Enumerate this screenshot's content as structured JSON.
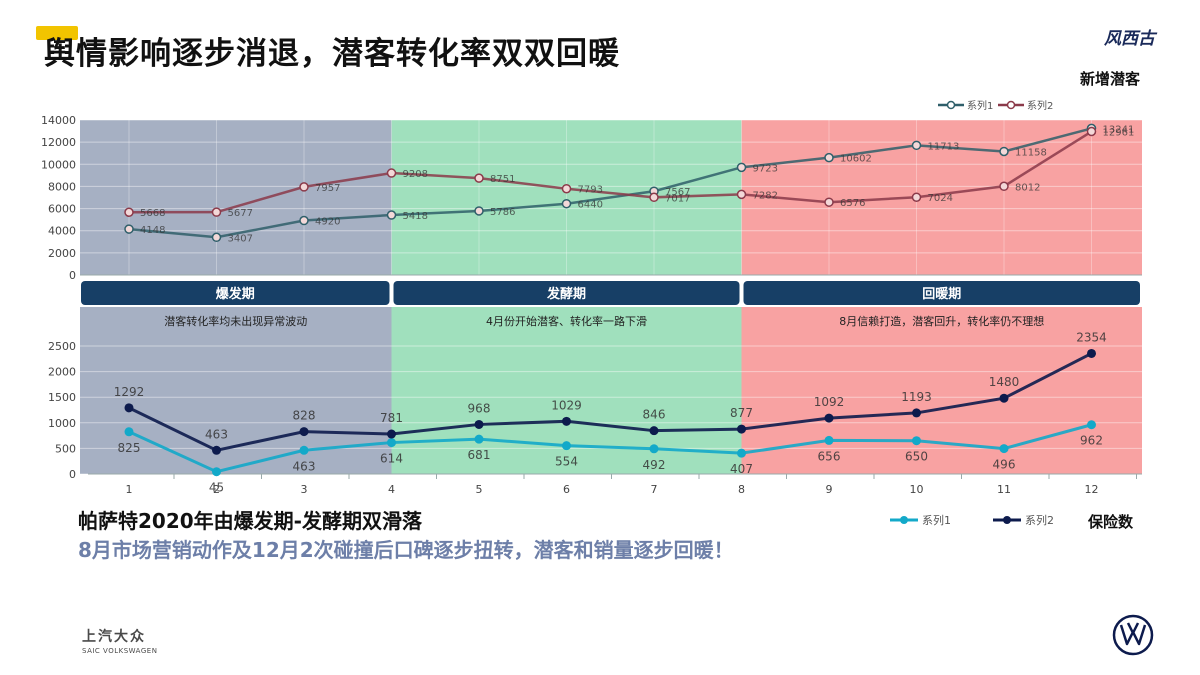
{
  "header": {
    "title": "舆情影响逐步消退，潜客转化率双双回暖",
    "brand_logo": "风西古"
  },
  "footer": {
    "summary_line1": "帕萨特2020年由爆发期-发酵期双滑落",
    "summary_line2": "8月市场营销动作及12月2次碰撞后口碑逐步扭转，潜客和销量逐步回暖！",
    "company_cn": "上汽大众",
    "company_en": "SAIC VOLKSWAGEN",
    "vw_logo": "vw-logo-icon"
  },
  "phases": [
    {
      "name": "爆发期",
      "note": "潜客转化率均未出现异常波动",
      "from": 1,
      "to": 4,
      "color": "#a6b0c3"
    },
    {
      "name": "发酵期",
      "note": "4月份开始潜客、转化率一路下滑",
      "from": 4,
      "to": 8,
      "color": "#a0e0bd"
    },
    {
      "name": "回暖期",
      "note": "8月信赖打造，潜客回升，转化率仍不理想",
      "from": 8,
      "to": 12,
      "color": "#f8a2a2"
    }
  ],
  "chart_data": [
    {
      "type": "line",
      "title": "新增潜客",
      "categories": [
        1,
        2,
        3,
        4,
        5,
        6,
        7,
        8,
        9,
        10,
        11,
        12
      ],
      "ylim": [
        0,
        14000
      ],
      "yticks": [
        0,
        2000,
        4000,
        6000,
        8000,
        10000,
        12000,
        14000
      ],
      "legend": "top-right",
      "grid": true,
      "series": [
        {
          "name": "系列1",
          "values": [
            4148,
            3407,
            4920,
            5418,
            5786,
            6440,
            7567,
            9723,
            10602,
            11713,
            11158,
            13241
          ],
          "color": "#2f5f6a"
        },
        {
          "name": "系列2",
          "values": [
            5668,
            5677,
            7957,
            9208,
            8751,
            7793,
            7017,
            7282,
            6576,
            7024,
            8012,
            12961
          ],
          "color": "#8b3a4a"
        }
      ]
    },
    {
      "type": "line",
      "title": "保险数",
      "categories": [
        1,
        2,
        3,
        4,
        5,
        6,
        7,
        8,
        9,
        10,
        11,
        12
      ],
      "ylim": [
        0,
        2500
      ],
      "yticks": [
        0,
        500,
        1000,
        1500,
        2000,
        2500
      ],
      "legend": "bottom-right",
      "grid": true,
      "series": [
        {
          "name": "系列1",
          "values": [
            825,
            45,
            463,
            614,
            681,
            554,
            492,
            407,
            656,
            650,
            496,
            962
          ],
          "color": "#13a9c9"
        },
        {
          "name": "系列2",
          "values": [
            1292,
            463,
            828,
            781,
            968,
            1029,
            846,
            877,
            1092,
            1193,
            1480,
            2354
          ],
          "color": "#0d1b4d"
        }
      ]
    }
  ]
}
